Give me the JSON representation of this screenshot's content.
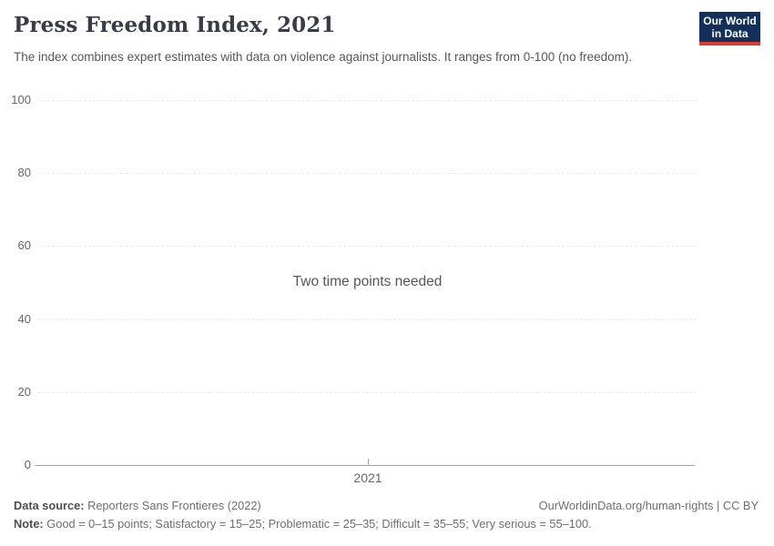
{
  "header": {
    "title": "Press Freedom Index, 2021",
    "subtitle": "The index combines expert estimates with data on violence against journalists. It ranges from 0-100 (no freedom).",
    "logo": {
      "name": "Our World in Data",
      "line1": "Our World",
      "line2": "in Data"
    }
  },
  "chart_data": {
    "type": "line",
    "title": "Press Freedom Index, 2021",
    "series": [],
    "categories": [],
    "empty_message": "Two time points needed",
    "xticks": [
      "2021"
    ],
    "yticks": [
      0,
      20,
      40,
      60,
      80,
      100
    ],
    "ylim": [
      0,
      100
    ],
    "xlabel": "",
    "ylabel": "",
    "grid": "horizontal dashed gridlines, solid baseline at 0",
    "legend": "none"
  },
  "footer": {
    "datasource_label": "Data source:",
    "datasource_value": "Reporters Sans Frontieres (2022)",
    "rights": "OurWorldinData.org/human-rights | CC BY",
    "note_label": "Note:",
    "note_value": "Good = 0–15 points; Satisfactory = 15–25; Problematic = 25–35; Difficult = 35–55; Very serious = 55–100."
  },
  "colors": {
    "logo_background": "#12305a",
    "logo_accent_red": "#dc3b32",
    "title_text": "#373c48",
    "subtitle_text": "#575757",
    "axis_text": "#666666",
    "gridline": "#e9e9e9",
    "axis_line": "#a3a3a3",
    "footer_text": "#6e6e6e"
  }
}
